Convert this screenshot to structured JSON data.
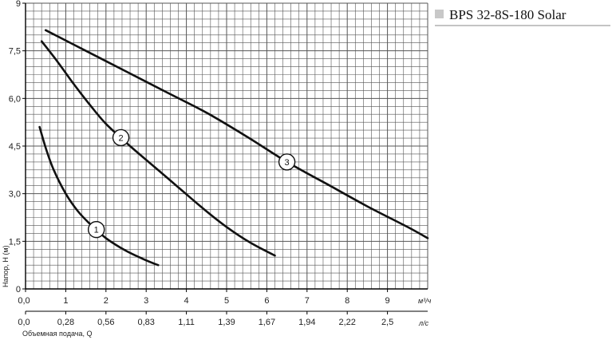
{
  "title": "BPS 32-8S-180 Solar",
  "colors": {
    "grid": "#555555",
    "curve": "#111111",
    "title_marker": "#c8c8c8"
  },
  "chart_data": {
    "type": "line",
    "title": "BPS 32-8S-180 Solar",
    "ylabel": "Напор, H (м)",
    "xlabel": "Объемная подача, Q",
    "x_unit": "м³/ч",
    "x2_unit": "л/с",
    "xlim": [
      0,
      10
    ],
    "ylim": [
      0,
      9
    ],
    "x_ticks": [
      "0,0",
      "1",
      "2",
      "3",
      "4",
      "5",
      "6",
      "7",
      "8",
      "9"
    ],
    "x2_ticks": [
      "0,0",
      "0,28",
      "0,56",
      "0,83",
      "1,11",
      "1,39",
      "1,67",
      "1,94",
      "2,22",
      "2,5"
    ],
    "y_ticks": [
      "0",
      "1,5",
      "3,0",
      "4,5",
      "6,0",
      "7,5",
      "9"
    ],
    "grid": true,
    "series": [
      {
        "name": "1",
        "x": [
          0.35,
          0.5,
          0.7,
          1.0,
          1.3,
          1.6,
          2.0,
          2.5,
          3.0,
          3.3
        ],
        "y": [
          5.1,
          4.45,
          3.75,
          3.0,
          2.45,
          2.05,
          1.6,
          1.2,
          0.9,
          0.75
        ]
      },
      {
        "name": "2",
        "x": [
          0.4,
          0.8,
          1.2,
          1.6,
          2.0,
          2.6,
          3.2,
          3.8,
          4.4,
          5.0,
          5.6,
          6.2
        ],
        "y": [
          7.8,
          7.15,
          6.45,
          5.8,
          5.2,
          4.5,
          3.85,
          3.2,
          2.55,
          1.95,
          1.45,
          1.05
        ]
      },
      {
        "name": "3",
        "x": [
          0.5,
          1.5,
          2.5,
          3.5,
          4.5,
          5.5,
          6.5,
          7.5,
          8.5,
          9.5,
          10.0
        ],
        "y": [
          8.15,
          7.5,
          6.85,
          6.2,
          5.55,
          4.8,
          4.0,
          3.3,
          2.6,
          1.95,
          1.6
        ]
      }
    ]
  }
}
